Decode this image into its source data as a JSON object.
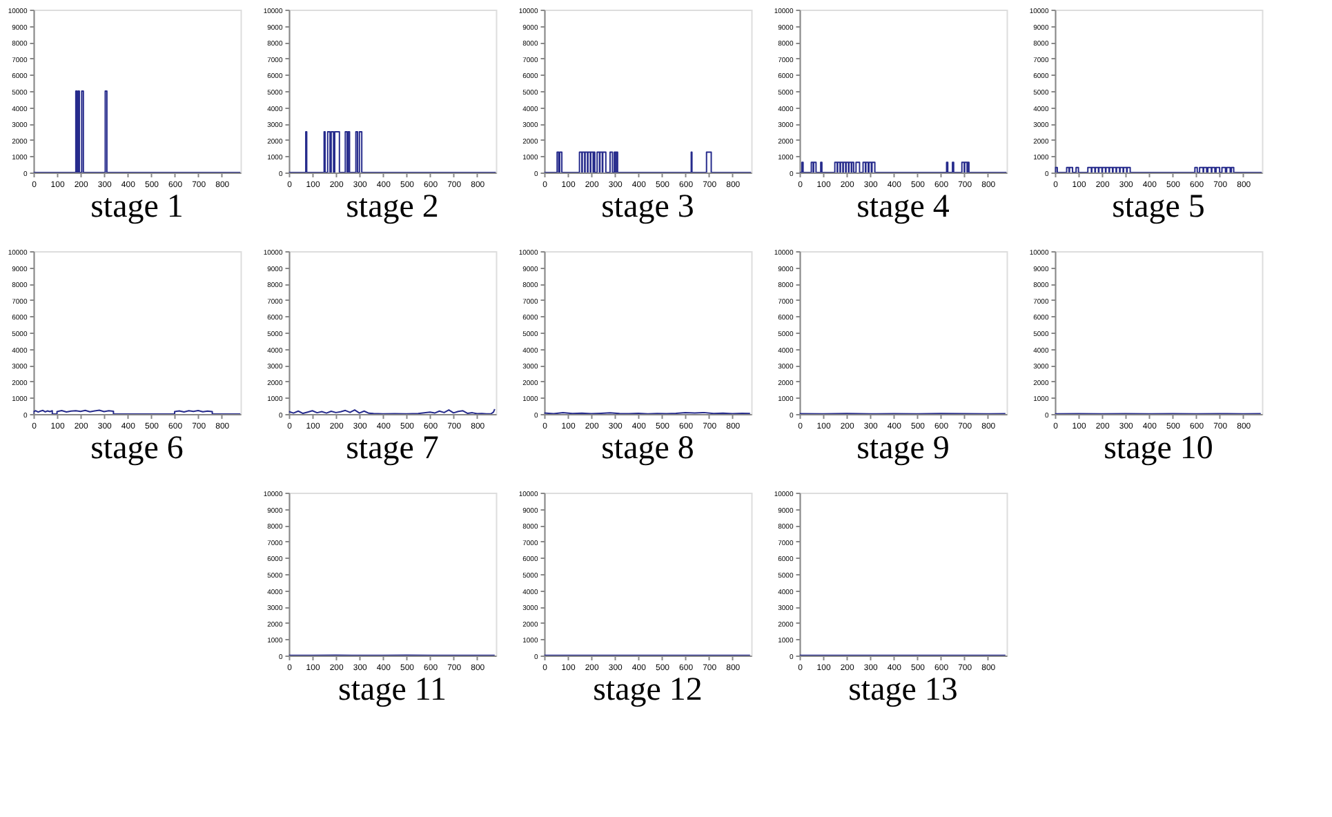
{
  "chart_data": [
    {
      "type": "line",
      "title": "stage 1",
      "xlim": [
        0,
        880
      ],
      "xticks": [
        0,
        100,
        200,
        300,
        400,
        500,
        600,
        700,
        800
      ],
      "ylim": [
        0,
        10000
      ],
      "yticks": [
        0,
        1000,
        2000,
        3000,
        4000,
        5000,
        6000,
        7000,
        8000,
        9000,
        10000
      ],
      "grid": false,
      "series": [
        {
          "color": "#262b8c",
          "x": [
            0,
            180,
            180,
            185,
            185,
            190,
            190,
            195,
            195,
            205,
            205,
            212,
            212,
            305,
            305,
            312,
            312,
            880
          ],
          "values": [
            0,
            0,
            5000,
            5000,
            0,
            0,
            5000,
            5000,
            0,
            0,
            5000,
            5000,
            0,
            0,
            5000,
            5000,
            0,
            0
          ]
        }
      ]
    },
    {
      "type": "line",
      "title": "stage 2",
      "xlim": [
        0,
        880
      ],
      "xticks": [
        0,
        100,
        200,
        300,
        400,
        500,
        600,
        700,
        800
      ],
      "ylim": [
        0,
        10000
      ],
      "yticks": [
        0,
        1000,
        2000,
        3000,
        4000,
        5000,
        6000,
        7000,
        8000,
        9000,
        10000
      ],
      "grid": false,
      "series": [
        {
          "color": "#262b8c",
          "x": [
            0,
            72,
            72,
            76,
            76,
            150,
            150,
            154,
            154,
            165,
            165,
            175,
            175,
            180,
            180,
            190,
            190,
            195,
            195,
            215,
            215,
            240,
            240,
            248,
            248,
            252,
            252,
            258,
            258,
            285,
            285,
            292,
            292,
            300,
            300,
            310,
            310,
            880
          ],
          "values": [
            0,
            0,
            2500,
            2500,
            0,
            0,
            2500,
            2500,
            0,
            0,
            2500,
            2500,
            0,
            0,
            2500,
            2500,
            0,
            0,
            2500,
            2500,
            0,
            0,
            2500,
            2500,
            0,
            0,
            2500,
            2500,
            0,
            0,
            2500,
            2500,
            0,
            0,
            2500,
            2500,
            0,
            0
          ]
        }
      ]
    },
    {
      "type": "line",
      "title": "stage 3",
      "xlim": [
        0,
        880
      ],
      "xticks": [
        0,
        100,
        200,
        300,
        400,
        500,
        600,
        700,
        800
      ],
      "ylim": [
        0,
        10000
      ],
      "yticks": [
        0,
        1000,
        2000,
        3000,
        4000,
        5000,
        6000,
        7000,
        8000,
        9000,
        10000
      ],
      "grid": false,
      "series": [
        {
          "color": "#262b8c",
          "x": [
            0,
            55,
            55,
            62,
            62,
            66,
            66,
            75,
            75,
            150,
            150,
            160,
            160,
            162,
            162,
            172,
            172,
            174,
            174,
            184,
            184,
            186,
            186,
            196,
            196,
            198,
            198,
            208,
            208,
            210,
            210,
            215,
            215,
            225,
            225,
            235,
            235,
            237,
            237,
            247,
            247,
            249,
            249,
            262,
            262,
            280,
            280,
            290,
            290,
            298,
            298,
            304,
            304,
            306,
            306,
            312,
            312,
            625,
            625,
            628,
            628,
            690,
            690,
            710,
            710,
            880
          ],
          "values": [
            0,
            0,
            1250,
            1250,
            0,
            0,
            1250,
            1250,
            0,
            0,
            1250,
            1250,
            0,
            0,
            1250,
            1250,
            0,
            0,
            1250,
            1250,
            0,
            0,
            1250,
            1250,
            0,
            0,
            1250,
            1250,
            0,
            0,
            1250,
            1250,
            0,
            0,
            1250,
            1250,
            0,
            0,
            1250,
            1250,
            0,
            0,
            1250,
            1250,
            0,
            0,
            1250,
            1250,
            0,
            0,
            1250,
            1250,
            0,
            0,
            1250,
            1250,
            0,
            0,
            1250,
            1250,
            0,
            0,
            1250,
            1250,
            0,
            0
          ]
        }
      ]
    },
    {
      "type": "line",
      "title": "stage 4",
      "xlim": [
        0,
        880
      ],
      "xticks": [
        0,
        100,
        200,
        300,
        400,
        500,
        600,
        700,
        800
      ],
      "ylim": [
        0,
        10000
      ],
      "yticks": [
        0,
        1000,
        2000,
        3000,
        4000,
        5000,
        6000,
        7000,
        8000,
        9000,
        10000
      ],
      "grid": false,
      "series": [
        {
          "color": "#262b8c",
          "x": [
            0,
            10,
            10,
            15,
            15,
            50,
            50,
            58,
            58,
            60,
            60,
            70,
            70,
            90,
            90,
            95,
            95,
            150,
            150,
            160,
            160,
            162,
            162,
            172,
            172,
            174,
            174,
            184,
            184,
            186,
            186,
            196,
            196,
            198,
            198,
            208,
            208,
            210,
            210,
            220,
            220,
            222,
            222,
            230,
            230,
            240,
            240,
            255,
            255,
            270,
            270,
            280,
            280,
            282,
            282,
            292,
            292,
            295,
            295,
            305,
            305,
            308,
            308,
            320,
            320,
            625,
            625,
            630,
            630,
            650,
            650,
            655,
            655,
            690,
            690,
            700,
            700,
            702,
            702,
            712,
            712,
            714,
            714,
            720,
            720,
            880
          ],
          "values": [
            0,
            0,
            625,
            625,
            0,
            0,
            625,
            625,
            0,
            0,
            625,
            625,
            0,
            0,
            625,
            625,
            0,
            0,
            625,
            625,
            0,
            0,
            625,
            625,
            0,
            0,
            625,
            625,
            0,
            0,
            625,
            625,
            0,
            0,
            625,
            625,
            0,
            0,
            625,
            625,
            0,
            0,
            625,
            625,
            0,
            0,
            625,
            625,
            0,
            0,
            625,
            625,
            0,
            0,
            625,
            625,
            0,
            0,
            625,
            625,
            0,
            0,
            625,
            625,
            0,
            0,
            625,
            625,
            0,
            0,
            625,
            625,
            0,
            0,
            625,
            625,
            0,
            0,
            625,
            625,
            0,
            0,
            625,
            625,
            0,
            0
          ]
        }
      ]
    },
    {
      "type": "line",
      "title": "stage 5",
      "xlim": [
        0,
        880
      ],
      "xticks": [
        0,
        100,
        200,
        300,
        400,
        500,
        600,
        700,
        800
      ],
      "ylim": [
        0,
        10000
      ],
      "yticks": [
        0,
        1000,
        2000,
        3000,
        4000,
        5000,
        6000,
        7000,
        8000,
        9000,
        10000
      ],
      "grid": false,
      "series": [
        {
          "color": "#262b8c",
          "x": [
            0,
            2,
            2,
            10,
            10,
            50,
            50,
            60,
            60,
            62,
            62,
            75,
            75,
            90,
            90,
            100,
            100,
            140,
            140,
            155,
            155,
            157,
            157,
            170,
            170,
            172,
            172,
            185,
            185,
            187,
            187,
            200,
            200,
            202,
            202,
            215,
            215,
            217,
            217,
            230,
            230,
            232,
            232,
            245,
            245,
            247,
            247,
            260,
            260,
            262,
            262,
            275,
            275,
            277,
            277,
            290,
            290,
            292,
            292,
            305,
            305,
            307,
            307,
            320,
            320,
            595,
            595,
            605,
            605,
            615,
            615,
            630,
            630,
            632,
            632,
            645,
            645,
            650,
            650,
            665,
            665,
            667,
            667,
            680,
            680,
            685,
            685,
            700,
            700,
            710,
            710,
            725,
            725,
            730,
            730,
            745,
            745,
            750,
            750,
            760,
            760,
            880
          ],
          "values": [
            0,
            0,
            312,
            312,
            0,
            0,
            312,
            312,
            0,
            0,
            312,
            312,
            0,
            0,
            312,
            312,
            0,
            0,
            312,
            312,
            0,
            0,
            312,
            312,
            0,
            0,
            312,
            312,
            0,
            0,
            312,
            312,
            0,
            0,
            312,
            312,
            0,
            0,
            312,
            312,
            0,
            0,
            312,
            312,
            0,
            0,
            312,
            312,
            0,
            0,
            312,
            312,
            0,
            0,
            312,
            312,
            0,
            0,
            312,
            312,
            0,
            0,
            312,
            312,
            0,
            0,
            312,
            312,
            0,
            0,
            312,
            312,
            0,
            0,
            312,
            312,
            0,
            0,
            312,
            312,
            0,
            0,
            312,
            312,
            0,
            0,
            312,
            312,
            0,
            0,
            312,
            312,
            0,
            0,
            312,
            312,
            0,
            0,
            312,
            312,
            0,
            0
          ]
        }
      ]
    },
    {
      "type": "line",
      "title": "stage 6",
      "xlim": [
        0,
        880
      ],
      "xticks": [
        0,
        100,
        200,
        300,
        400,
        500,
        600,
        700,
        800
      ],
      "ylim": [
        0,
        10000
      ],
      "yticks": [
        0,
        1000,
        2000,
        3000,
        4000,
        5000,
        6000,
        7000,
        8000,
        9000,
        10000
      ],
      "grid": false,
      "series": [
        {
          "color": "#262b8c",
          "x": [
            0,
            0,
            10,
            20,
            30,
            40,
            50,
            60,
            70,
            80,
            80,
            100,
            100,
            120,
            140,
            160,
            180,
            200,
            220,
            240,
            260,
            280,
            300,
            320,
            340,
            340,
            600,
            600,
            620,
            640,
            660,
            680,
            700,
            720,
            740,
            760,
            760,
            880
          ],
          "values": [
            0,
            150,
            200,
            120,
            180,
            220,
            130,
            190,
            150,
            200,
            0,
            0,
            150,
            210,
            130,
            180,
            200,
            160,
            220,
            140,
            190,
            230,
            150,
            200,
            170,
            0,
            0,
            150,
            190,
            130,
            200,
            160,
            210,
            140,
            180,
            150,
            0,
            0
          ]
        }
      ]
    },
    {
      "type": "line",
      "title": "stage 7",
      "xlim": [
        0,
        880
      ],
      "xticks": [
        0,
        100,
        200,
        300,
        400,
        500,
        600,
        700,
        800
      ],
      "ylim": [
        0,
        10000
      ],
      "yticks": [
        0,
        1000,
        2000,
        3000,
        4000,
        5000,
        6000,
        7000,
        8000,
        9000,
        10000
      ],
      "grid": false,
      "series": [
        {
          "color": "#262b8c",
          "x": [
            0,
            20,
            40,
            60,
            80,
            100,
            120,
            140,
            160,
            180,
            200,
            220,
            240,
            260,
            280,
            300,
            320,
            340,
            360,
            400,
            450,
            500,
            550,
            600,
            620,
            640,
            660,
            680,
            700,
            720,
            740,
            760,
            780,
            800,
            820,
            840,
            860,
            870,
            875
          ],
          "values": [
            150,
            60,
            180,
            40,
            120,
            200,
            80,
            150,
            60,
            170,
            90,
            140,
            220,
            100,
            250,
            60,
            180,
            50,
            30,
            10,
            20,
            10,
            30,
            120,
            60,
            180,
            90,
            250,
            70,
            160,
            200,
            40,
            80,
            20,
            30,
            10,
            20,
            120,
            300
          ]
        }
      ]
    },
    {
      "type": "line",
      "title": "stage 8",
      "xlim": [
        0,
        880
      ],
      "xticks": [
        0,
        100,
        200,
        300,
        400,
        500,
        600,
        700,
        800
      ],
      "ylim": [
        0,
        10000
      ],
      "yticks": [
        0,
        1000,
        2000,
        3000,
        4000,
        5000,
        6000,
        7000,
        8000,
        9000,
        10000
      ],
      "grid": false,
      "series": [
        {
          "color": "#262b8c",
          "x": [
            0,
            40,
            80,
            120,
            160,
            200,
            240,
            280,
            320,
            360,
            400,
            440,
            480,
            520,
            560,
            600,
            640,
            680,
            720,
            760,
            800,
            840,
            875
          ],
          "values": [
            60,
            20,
            80,
            30,
            50,
            20,
            40,
            70,
            30,
            20,
            40,
            10,
            30,
            20,
            40,
            80,
            60,
            90,
            30,
            50,
            20,
            40,
            30
          ]
        }
      ]
    },
    {
      "type": "line",
      "title": "stage 9",
      "xlim": [
        0,
        880
      ],
      "xticks": [
        0,
        100,
        200,
        300,
        400,
        500,
        600,
        700,
        800
      ],
      "ylim": [
        0,
        10000
      ],
      "yticks": [
        0,
        1000,
        2000,
        3000,
        4000,
        5000,
        6000,
        7000,
        8000,
        9000,
        10000
      ],
      "grid": false,
      "series": [
        {
          "color": "#262b8c",
          "x": [
            0,
            100,
            200,
            300,
            400,
            500,
            600,
            700,
            800,
            875
          ],
          "values": [
            20,
            10,
            30,
            10,
            20,
            10,
            30,
            20,
            10,
            20
          ]
        }
      ]
    },
    {
      "type": "line",
      "title": "stage 10",
      "xlim": [
        0,
        880
      ],
      "xticks": [
        0,
        100,
        200,
        300,
        400,
        500,
        600,
        700,
        800
      ],
      "ylim": [
        0,
        10000
      ],
      "yticks": [
        0,
        1000,
        2000,
        3000,
        4000,
        5000,
        6000,
        7000,
        8000,
        9000,
        10000
      ],
      "grid": false,
      "series": [
        {
          "color": "#262b8c",
          "x": [
            0,
            100,
            200,
            300,
            400,
            500,
            600,
            700,
            800,
            875
          ],
          "values": [
            10,
            20,
            10,
            20,
            10,
            20,
            10,
            20,
            10,
            20
          ]
        }
      ]
    },
    {
      "type": "line",
      "title": "stage 11",
      "xlim": [
        0,
        880
      ],
      "xticks": [
        0,
        100,
        200,
        300,
        400,
        500,
        600,
        700,
        800
      ],
      "ylim": [
        0,
        10000
      ],
      "yticks": [
        0,
        1000,
        2000,
        3000,
        4000,
        5000,
        6000,
        7000,
        8000,
        9000,
        10000
      ],
      "grid": false,
      "series": [
        {
          "color": "#262b8c",
          "x": [
            0,
            100,
            200,
            300,
            400,
            500,
            600,
            700,
            800,
            875
          ],
          "values": [
            10,
            10,
            20,
            10,
            10,
            20,
            10,
            10,
            10,
            10
          ]
        }
      ]
    },
    {
      "type": "line",
      "title": "stage 12",
      "xlim": [
        0,
        880
      ],
      "xticks": [
        0,
        100,
        200,
        300,
        400,
        500,
        600,
        700,
        800
      ],
      "ylim": [
        0,
        10000
      ],
      "yticks": [
        0,
        1000,
        2000,
        3000,
        4000,
        5000,
        6000,
        7000,
        8000,
        9000,
        10000
      ],
      "grid": false,
      "series": [
        {
          "color": "#262b8c",
          "x": [
            0,
            100,
            200,
            300,
            400,
            500,
            600,
            700,
            800,
            875
          ],
          "values": [
            10,
            10,
            10,
            10,
            10,
            10,
            10,
            10,
            10,
            10
          ]
        }
      ]
    },
    {
      "type": "line",
      "title": "stage 13",
      "xlim": [
        0,
        880
      ],
      "xticks": [
        0,
        100,
        200,
        300,
        400,
        500,
        600,
        700,
        800
      ],
      "ylim": [
        0,
        10000
      ],
      "yticks": [
        0,
        1000,
        2000,
        3000,
        4000,
        5000,
        6000,
        7000,
        8000,
        9000,
        10000
      ],
      "grid": false,
      "series": [
        {
          "color": "#262b8c",
          "x": [
            0,
            100,
            200,
            300,
            400,
            500,
            600,
            700,
            800,
            875
          ],
          "values": [
            10,
            10,
            10,
            10,
            10,
            10,
            10,
            10,
            10,
            10
          ]
        }
      ]
    }
  ]
}
